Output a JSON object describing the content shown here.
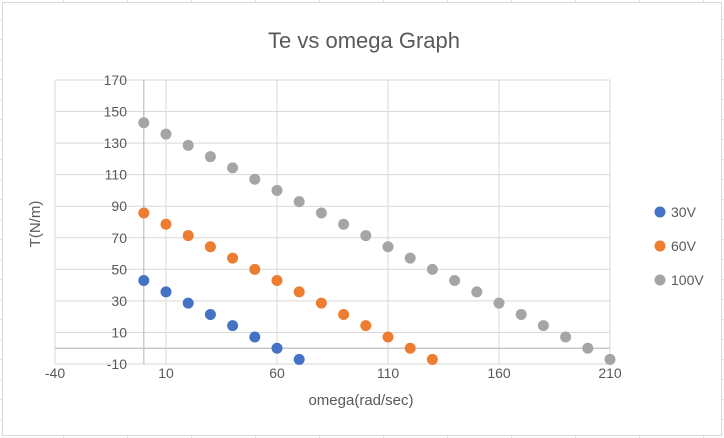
{
  "chart_data": {
    "type": "scatter",
    "title": "Te  vs omega Graph",
    "xlabel": "omega(rad/sec)",
    "ylabel": "T(N/m)",
    "xlim": [
      -40,
      210
    ],
    "ylim": [
      -10,
      170
    ],
    "x_ticks": [
      -40,
      10,
      60,
      110,
      160,
      210
    ],
    "y_ticks": [
      -10,
      10,
      30,
      50,
      70,
      90,
      110,
      130,
      150,
      170
    ],
    "grid": true,
    "legend_position": "right",
    "series": [
      {
        "name": "30V",
        "color": "#4472c4",
        "x": [
          0,
          10,
          20,
          30,
          40,
          50,
          60,
          70
        ],
        "y": [
          42.9,
          35.7,
          28.6,
          21.4,
          14.3,
          7.1,
          0,
          -7.1
        ]
      },
      {
        "name": "60V",
        "color": "#ed7d31",
        "x": [
          0,
          10,
          20,
          30,
          40,
          50,
          60,
          70,
          80,
          90,
          100,
          110,
          120,
          130
        ],
        "y": [
          85.7,
          78.6,
          71.4,
          64.3,
          57.1,
          50,
          42.9,
          35.7,
          28.6,
          21.4,
          14.3,
          7.1,
          0,
          -7.1
        ]
      },
      {
        "name": "100V",
        "color": "#a5a5a5",
        "x": [
          0,
          10,
          20,
          30,
          40,
          50,
          60,
          70,
          80,
          90,
          100,
          110,
          120,
          130,
          140,
          150,
          160,
          170,
          180,
          190,
          200,
          210
        ],
        "y": [
          142.9,
          135.7,
          128.6,
          121.4,
          114.3,
          107.1,
          100,
          92.9,
          85.7,
          78.6,
          71.4,
          64.3,
          57.1,
          50,
          42.9,
          35.7,
          28.6,
          21.4,
          14.3,
          7.1,
          0,
          -7.1
        ]
      }
    ]
  }
}
